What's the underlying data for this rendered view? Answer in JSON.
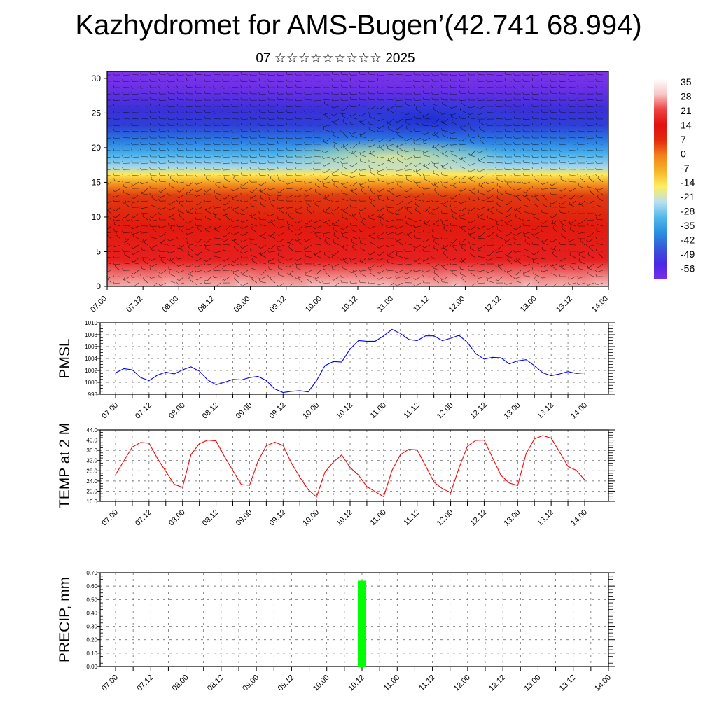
{
  "title": "Kazhydromet for AMS-Bugen’(42.741 68.994)",
  "subtitle": "07 ☆☆☆☆☆☆☆☆☆ 2025",
  "time_labels": [
    "07.00",
    "07.12",
    "08.00",
    "08.12",
    "09.00",
    "09.12",
    "10.00",
    "10.12",
    "11.00",
    "11.12",
    "12.00",
    "12.12",
    "13.00",
    "13.12",
    "14.00"
  ],
  "chart_data": [
    {
      "type": "heatmap",
      "name": "cross-section",
      "ylim": [
        0,
        31
      ],
      "yticks": [
        0,
        5,
        10,
        15,
        20,
        25,
        30
      ],
      "xticks": [
        "07.00",
        "07.12",
        "08.00",
        "08.12",
        "09.00",
        "09.12",
        "10.00",
        "10.12",
        "11.00",
        "11.12",
        "12.00",
        "12.12",
        "13.00",
        "13.12",
        "14.00"
      ],
      "colorbar_labels": [
        "35",
        "28",
        "21",
        "14",
        "7",
        "0",
        "-7",
        "-14",
        "-21",
        "-28",
        "-35",
        "-42",
        "-49",
        "-56"
      ],
      "colormap": [
        "#ffffff",
        "#f9c8c8",
        "#ee4444",
        "#e01010",
        "#e32a0f",
        "#f2821a",
        "#f6b52a",
        "#ffee60",
        "#b8e0f0",
        "#50b8ea",
        "#2a8ee0",
        "#3a56d8",
        "#4a28e6",
        "#7a2ee8"
      ],
      "wind_barbs": true
    },
    {
      "type": "line",
      "name": "PMSL",
      "ylabel": "PMSL",
      "ylim": [
        998,
        1010
      ],
      "yticks": [
        "998",
        "1000",
        "1002",
        "1004",
        "1006",
        "1008",
        "1010"
      ],
      "xticks": [
        "07.00",
        "07.12",
        "08.00",
        "08.12",
        "09.00",
        "09.12",
        "10.00",
        "10.12",
        "11.00",
        "11.12",
        "12.00",
        "12.12",
        "13.00",
        "13.12",
        "14.00"
      ],
      "series": [
        {
          "color": "#0000ff",
          "x": [
            0,
            3,
            6,
            9,
            12,
            15,
            18,
            21,
            24,
            27,
            30,
            33,
            36,
            39,
            42,
            45,
            48,
            51,
            54,
            57,
            60,
            63,
            66,
            69,
            72,
            75,
            78,
            81,
            84,
            87,
            90,
            93,
            96,
            99,
            102,
            105,
            108,
            111,
            114,
            117,
            120,
            123,
            126,
            129,
            132,
            135,
            138,
            141,
            144,
            147,
            150,
            153,
            156,
            159,
            162,
            165,
            168
          ],
          "values": [
            1001.6,
            1002.3,
            1002.1,
            1000.8,
            1000.3,
            1001.2,
            1001.7,
            1001.4,
            1002.1,
            1002.6,
            1001.9,
            1000.4,
            999.6,
            1000.0,
            1000.5,
            1000.4,
            1000.8,
            1001.0,
            1000.3,
            998.9,
            998.3,
            998.5,
            998.6,
            998.4,
            1000.3,
            1002.8,
            1003.5,
            1003.4,
            1005.6,
            1007.0,
            1006.9,
            1006.9,
            1007.8,
            1008.9,
            1008.2,
            1007.2,
            1007.0,
            1007.8,
            1007.8,
            1007.0,
            1007.4,
            1007.9,
            1006.7,
            1004.8,
            1003.9,
            1004.2,
            1004.1,
            1003.1,
            1003.6,
            1003.8,
            1002.8,
            1001.6,
            1001.1,
            1001.4,
            1001.8,
            1001.5,
            1001.6
          ]
        }
      ]
    },
    {
      "type": "line",
      "name": "TEMP at 2 M",
      "ylabel": "TEMP at 2 M",
      "ylim": [
        16,
        44
      ],
      "yticks": [
        "16.0",
        "20.0",
        "24.0",
        "28.0",
        "32.0",
        "36.0",
        "40.0",
        "44.0"
      ],
      "xticks": [
        "07.00",
        "07.12",
        "08.00",
        "08.12",
        "09.00",
        "09.12",
        "10.00",
        "10.12",
        "11.00",
        "11.12",
        "12.00",
        "12.12",
        "13.00",
        "13.12",
        "14.00"
      ],
      "series": [
        {
          "color": "#ff0000",
          "x": [
            0,
            6,
            9,
            12,
            15,
            21,
            24,
            27,
            30,
            33,
            36,
            39,
            45,
            48,
            51,
            54,
            57,
            60,
            63,
            66,
            69,
            72,
            75,
            78,
            81,
            84,
            87,
            90,
            93,
            96,
            99,
            102,
            105,
            108,
            111,
            114,
            117,
            120,
            123,
            126,
            129,
            132,
            135,
            138,
            141,
            144,
            147,
            150,
            153,
            156,
            159,
            162,
            165,
            168
          ],
          "values": [
            26.5,
            37.3,
            39.1,
            38.8,
            32.8,
            22.7,
            21.5,
            34.3,
            38.6,
            40.0,
            39.7,
            33.6,
            22.6,
            22.3,
            31.7,
            37.8,
            39.2,
            37.9,
            31.0,
            25.5,
            20.6,
            17.7,
            27.5,
            31.4,
            34.2,
            29.3,
            26.3,
            21.8,
            19.8,
            17.8,
            28.1,
            34.3,
            36.4,
            36.2,
            30.0,
            23.6,
            21.0,
            19.4,
            29.1,
            37.6,
            39.9,
            40.0,
            33.1,
            26.2,
            23.2,
            22.2,
            34.7,
            40.5,
            41.8,
            40.8,
            35.4,
            29.7,
            28.2,
            24.4
          ]
        }
      ]
    },
    {
      "type": "bar",
      "name": "PRECIP, mm",
      "ylabel": "PRECIP, mm",
      "ylim": [
        0,
        0.7
      ],
      "yticks": [
        "0.00",
        "0.10",
        "0.20",
        "0.30",
        "0.40",
        "0.50",
        "0.60",
        "0.70"
      ],
      "xticks": [
        "07.00",
        "07.12",
        "08.00",
        "08.12",
        "09.00",
        "09.12",
        "10.00",
        "10.12",
        "11.00",
        "11.12",
        "12.00",
        "12.12",
        "13.00",
        "13.12",
        "14.00"
      ],
      "bars": [
        {
          "x": 84,
          "value": 0.64,
          "color": "#00ff00"
        }
      ]
    }
  ]
}
